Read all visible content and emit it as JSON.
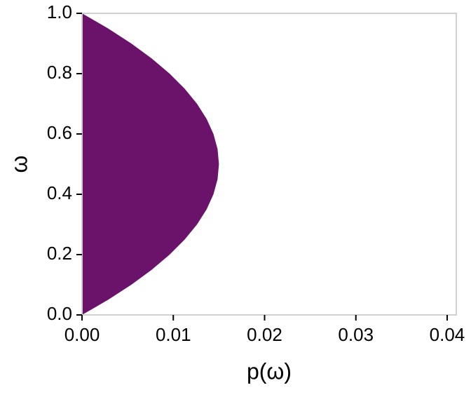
{
  "chart_data": {
    "type": "area",
    "xlabel": "p(ω)",
    "ylabel": "ω",
    "y": [
      0,
      0.05,
      0.1,
      0.15,
      0.2,
      0.25,
      0.3,
      0.35,
      0.4,
      0.45,
      0.5,
      0.55,
      0.6,
      0.65,
      0.7,
      0.75,
      0.8,
      0.85,
      0.9,
      0.95,
      1
    ],
    "values": [
      0,
      0.00285,
      0.0054,
      0.00765,
      0.0096,
      0.01125,
      0.0126,
      0.01365,
      0.0144,
      0.01485,
      0.015,
      0.01485,
      0.0144,
      0.01365,
      0.0126,
      0.01125,
      0.0096,
      0.00765,
      0.0054,
      0.00285,
      0
    ],
    "color": "#6b136b",
    "xlim": [
      0,
      0.041
    ],
    "ylim": [
      0,
      1
    ],
    "xticks": [
      {
        "value": 0,
        "label": "0.00"
      },
      {
        "value": 0.01,
        "label": "0.01"
      },
      {
        "value": 0.02,
        "label": "0.02"
      },
      {
        "value": 0.03,
        "label": "0.03"
      },
      {
        "value": 0.04,
        "label": "0.04"
      }
    ],
    "yticks": [
      {
        "value": 0,
        "label": "0.0"
      },
      {
        "value": 0.2,
        "label": "0.2"
      },
      {
        "value": 0.4,
        "label": "0.4"
      },
      {
        "value": 0.6,
        "label": "0.6"
      },
      {
        "value": 0.8,
        "label": "0.8"
      },
      {
        "value": 1,
        "label": "1.0"
      }
    ]
  }
}
